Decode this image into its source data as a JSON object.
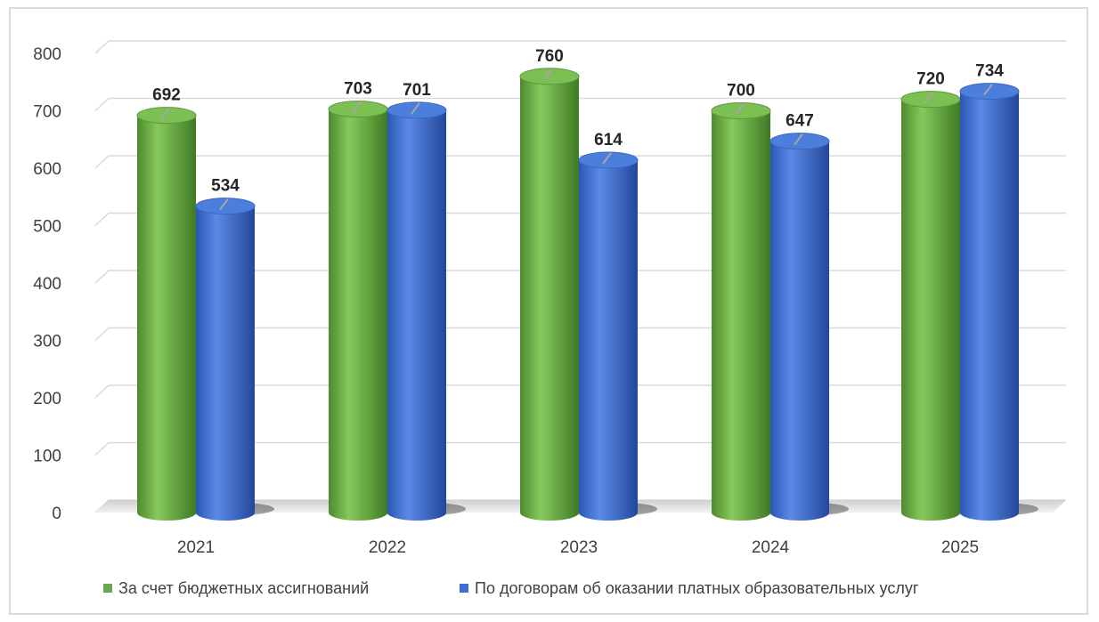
{
  "chart_data": {
    "type": "bar",
    "categories": [
      "2021",
      "2022",
      "2023",
      "2024",
      "2025"
    ],
    "series": [
      {
        "name": "За счет бюджетных ассигнований",
        "values": [
          692,
          703,
          760,
          700,
          720
        ],
        "color": "#6aa84f"
      },
      {
        "name": "По договорам об оказании платных образовательных услуг",
        "values": [
          534,
          701,
          614,
          647,
          734
        ],
        "color": "#3d6fd0"
      }
    ],
    "yticks": [
      0,
      100,
      200,
      300,
      400,
      500,
      600,
      700,
      800
    ],
    "ylim": [
      0,
      800
    ],
    "grid": true,
    "legend": "bottom",
    "bar_style": "3d-cylinder"
  }
}
